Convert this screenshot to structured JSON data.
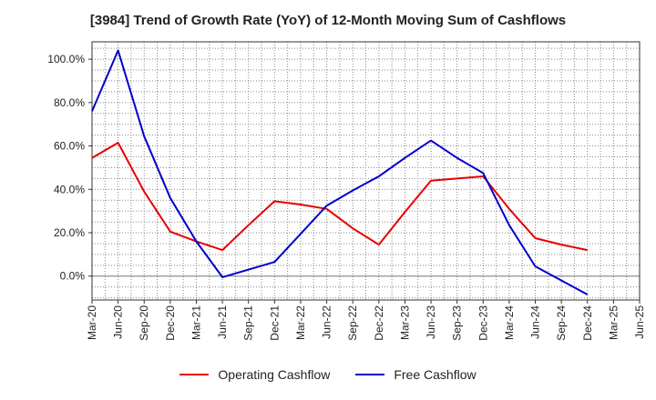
{
  "chart_data": {
    "type": "line",
    "title": "[3984]  Trend of Growth Rate (YoY) of 12-Month Moving Sum of Cashflows",
    "xlabel": "",
    "ylabel": "",
    "categories": [
      "Mar-20",
      "Jun-20",
      "Sep-20",
      "Dec-20",
      "Mar-21",
      "Jun-21",
      "Sep-21",
      "Dec-21",
      "Mar-22",
      "Jun-22",
      "Sep-22",
      "Dec-22",
      "Mar-23",
      "Jun-23",
      "Sep-23",
      "Dec-23",
      "Mar-24",
      "Jun-24",
      "Sep-24",
      "Dec-24",
      "Mar-25",
      "Jun-25"
    ],
    "y_ticks": [
      0,
      20,
      40,
      60,
      80,
      100
    ],
    "y_tick_labels": [
      "0.0%",
      "20.0%",
      "40.0%",
      "60.0%",
      "80.0%",
      "100.0%"
    ],
    "ylim": [
      -11,
      108
    ],
    "grid": true,
    "legend_position": "bottom",
    "series": [
      {
        "name": "Operating Cashflow",
        "color": "#e60000",
        "values": [
          54.5,
          61.5,
          39.0,
          20.5,
          16.0,
          12.0,
          23.5,
          34.5,
          33.0,
          31.0,
          22.0,
          14.5,
          29.5,
          44.0,
          45.0,
          46.0,
          31.0,
          17.5,
          14.5,
          12.0,
          null,
          null
        ]
      },
      {
        "name": "Free Cashflow",
        "color": "#0000cc",
        "values": [
          76.0,
          104.0,
          64.5,
          36.0,
          16.0,
          -0.5,
          3.0,
          6.5,
          19.5,
          32.5,
          39.5,
          46.0,
          54.5,
          62.5,
          54.5,
          47.5,
          23.5,
          4.5,
          -2.0,
          -8.5,
          null,
          null
        ]
      }
    ]
  }
}
